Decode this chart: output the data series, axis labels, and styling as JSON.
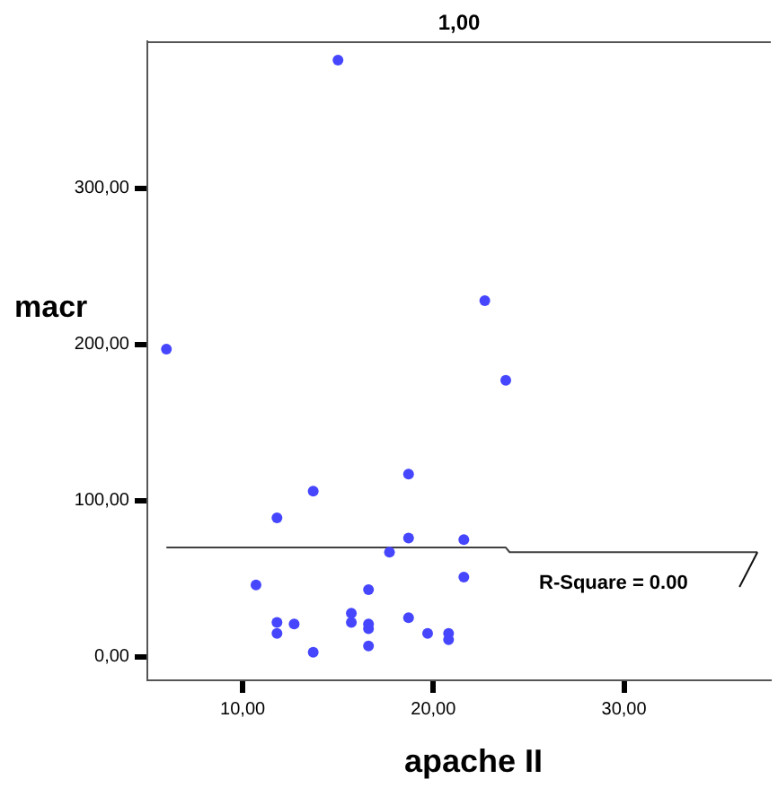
{
  "chart_data": {
    "type": "scatter",
    "title": "1,00",
    "xlabel": "apache II",
    "ylabel": "macr",
    "series": [
      {
        "color": "#4646ff",
        "marker": "circle",
        "x": [
          6,
          15,
          22.7,
          23.8,
          18.7,
          13.7,
          11.8,
          18.7,
          21.6,
          17.7,
          21.6,
          10.7,
          16.6,
          15.7,
          15.7,
          16.6,
          16.6,
          11.8,
          11.8,
          12.7,
          18.7,
          19.7,
          20.8,
          20.8,
          13.7,
          16.6
        ],
        "values": [
          197,
          382,
          228,
          177,
          117,
          106,
          89,
          76,
          75,
          67,
          51,
          46,
          43,
          28,
          22,
          21,
          18,
          22,
          15,
          21,
          25,
          15,
          15,
          11,
          3,
          7
        ]
      },
      {
        "type": "line",
        "color": "#404040",
        "marker": "none",
        "x": [
          6,
          23.8,
          24,
          37
        ],
        "values": [
          70,
          70,
          67,
          67
        ]
      }
    ],
    "annotations": [
      "R-Square = 0.00"
    ],
    "grid": false,
    "legend": false,
    "xlim": [
      5,
      37.7
    ],
    "ylim": [
      -15,
      394
    ],
    "xticks": [
      {
        "value": 10,
        "label": "10,00"
      },
      {
        "value": 20,
        "label": "20,00"
      },
      {
        "value": 30,
        "label": "30,00"
      }
    ],
    "yticks": [
      {
        "value": 0,
        "label": "0,00"
      },
      {
        "value": 100,
        "label": "100,00"
      },
      {
        "value": 200,
        "label": "200,00"
      },
      {
        "value": 300,
        "label": "300,00"
      }
    ]
  }
}
